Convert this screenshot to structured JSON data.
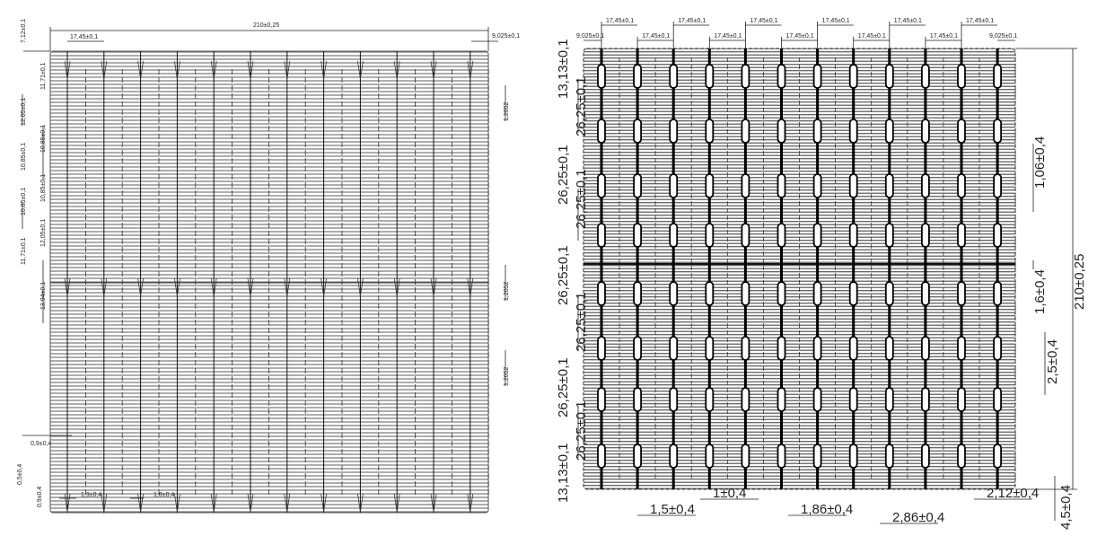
{
  "left_drawing": {
    "overall_width": "210±0,25",
    "pitch": "17,45±0,1",
    "edge_offset": "9,025±0,1",
    "top_margin": "7,12±0,1",
    "vertical_dims_outer": [
      "12,05±0,1",
      "10,85±0,1",
      "10,85±0,1",
      "11,71±0,1"
    ],
    "vertical_dims_inner": [
      "11,71±0,1",
      "10,85±0,1",
      "10,85±0,1",
      "12,05±0,1",
      "13,94±0,1"
    ],
    "right_dims": [
      "1,2052",
      "1,2052",
      "1,2052"
    ],
    "bottom_dims": {
      "pad_a": "0,9±0,4",
      "pad_b": "0,5±0,4",
      "pad_c": "0,9±0,4",
      "width_a": "1,3±0,4",
      "width_b": "1,8±0,4"
    }
  },
  "right_drawing": {
    "edge_left": "9,025±0,1",
    "edge_right": "9,025±0,1",
    "pitches": [
      "17,45±0,1",
      "17,45±0,1",
      "17,45±0,1",
      "17,45±0,1",
      "17,45±0,1",
      "17,45±0,1",
      "17,45±0,1",
      "17,45±0,1",
      "17,45±0,1",
      "17,45±0,1",
      "17,45±0,1"
    ],
    "top_margin": "13,13±0,1",
    "bottom_margin": "13,13±0,1",
    "row_pitches": [
      "26,25±0,1",
      "26,25±0,1",
      "26,25±0,1",
      "26,25±0,1",
      "26,25±0,1",
      "26,25±0,1",
      "26,25±0,1"
    ],
    "overall_height": "210±0,25",
    "right_dims": [
      "1,06±0,4",
      "1,6±0,4",
      "2,5±0,4",
      "4,5±0,4"
    ],
    "bottom_dims": [
      "1,5±0,4",
      "1±0,4",
      "1,86±0,4",
      "2,86±0,4",
      "2,12±0,4"
    ]
  }
}
